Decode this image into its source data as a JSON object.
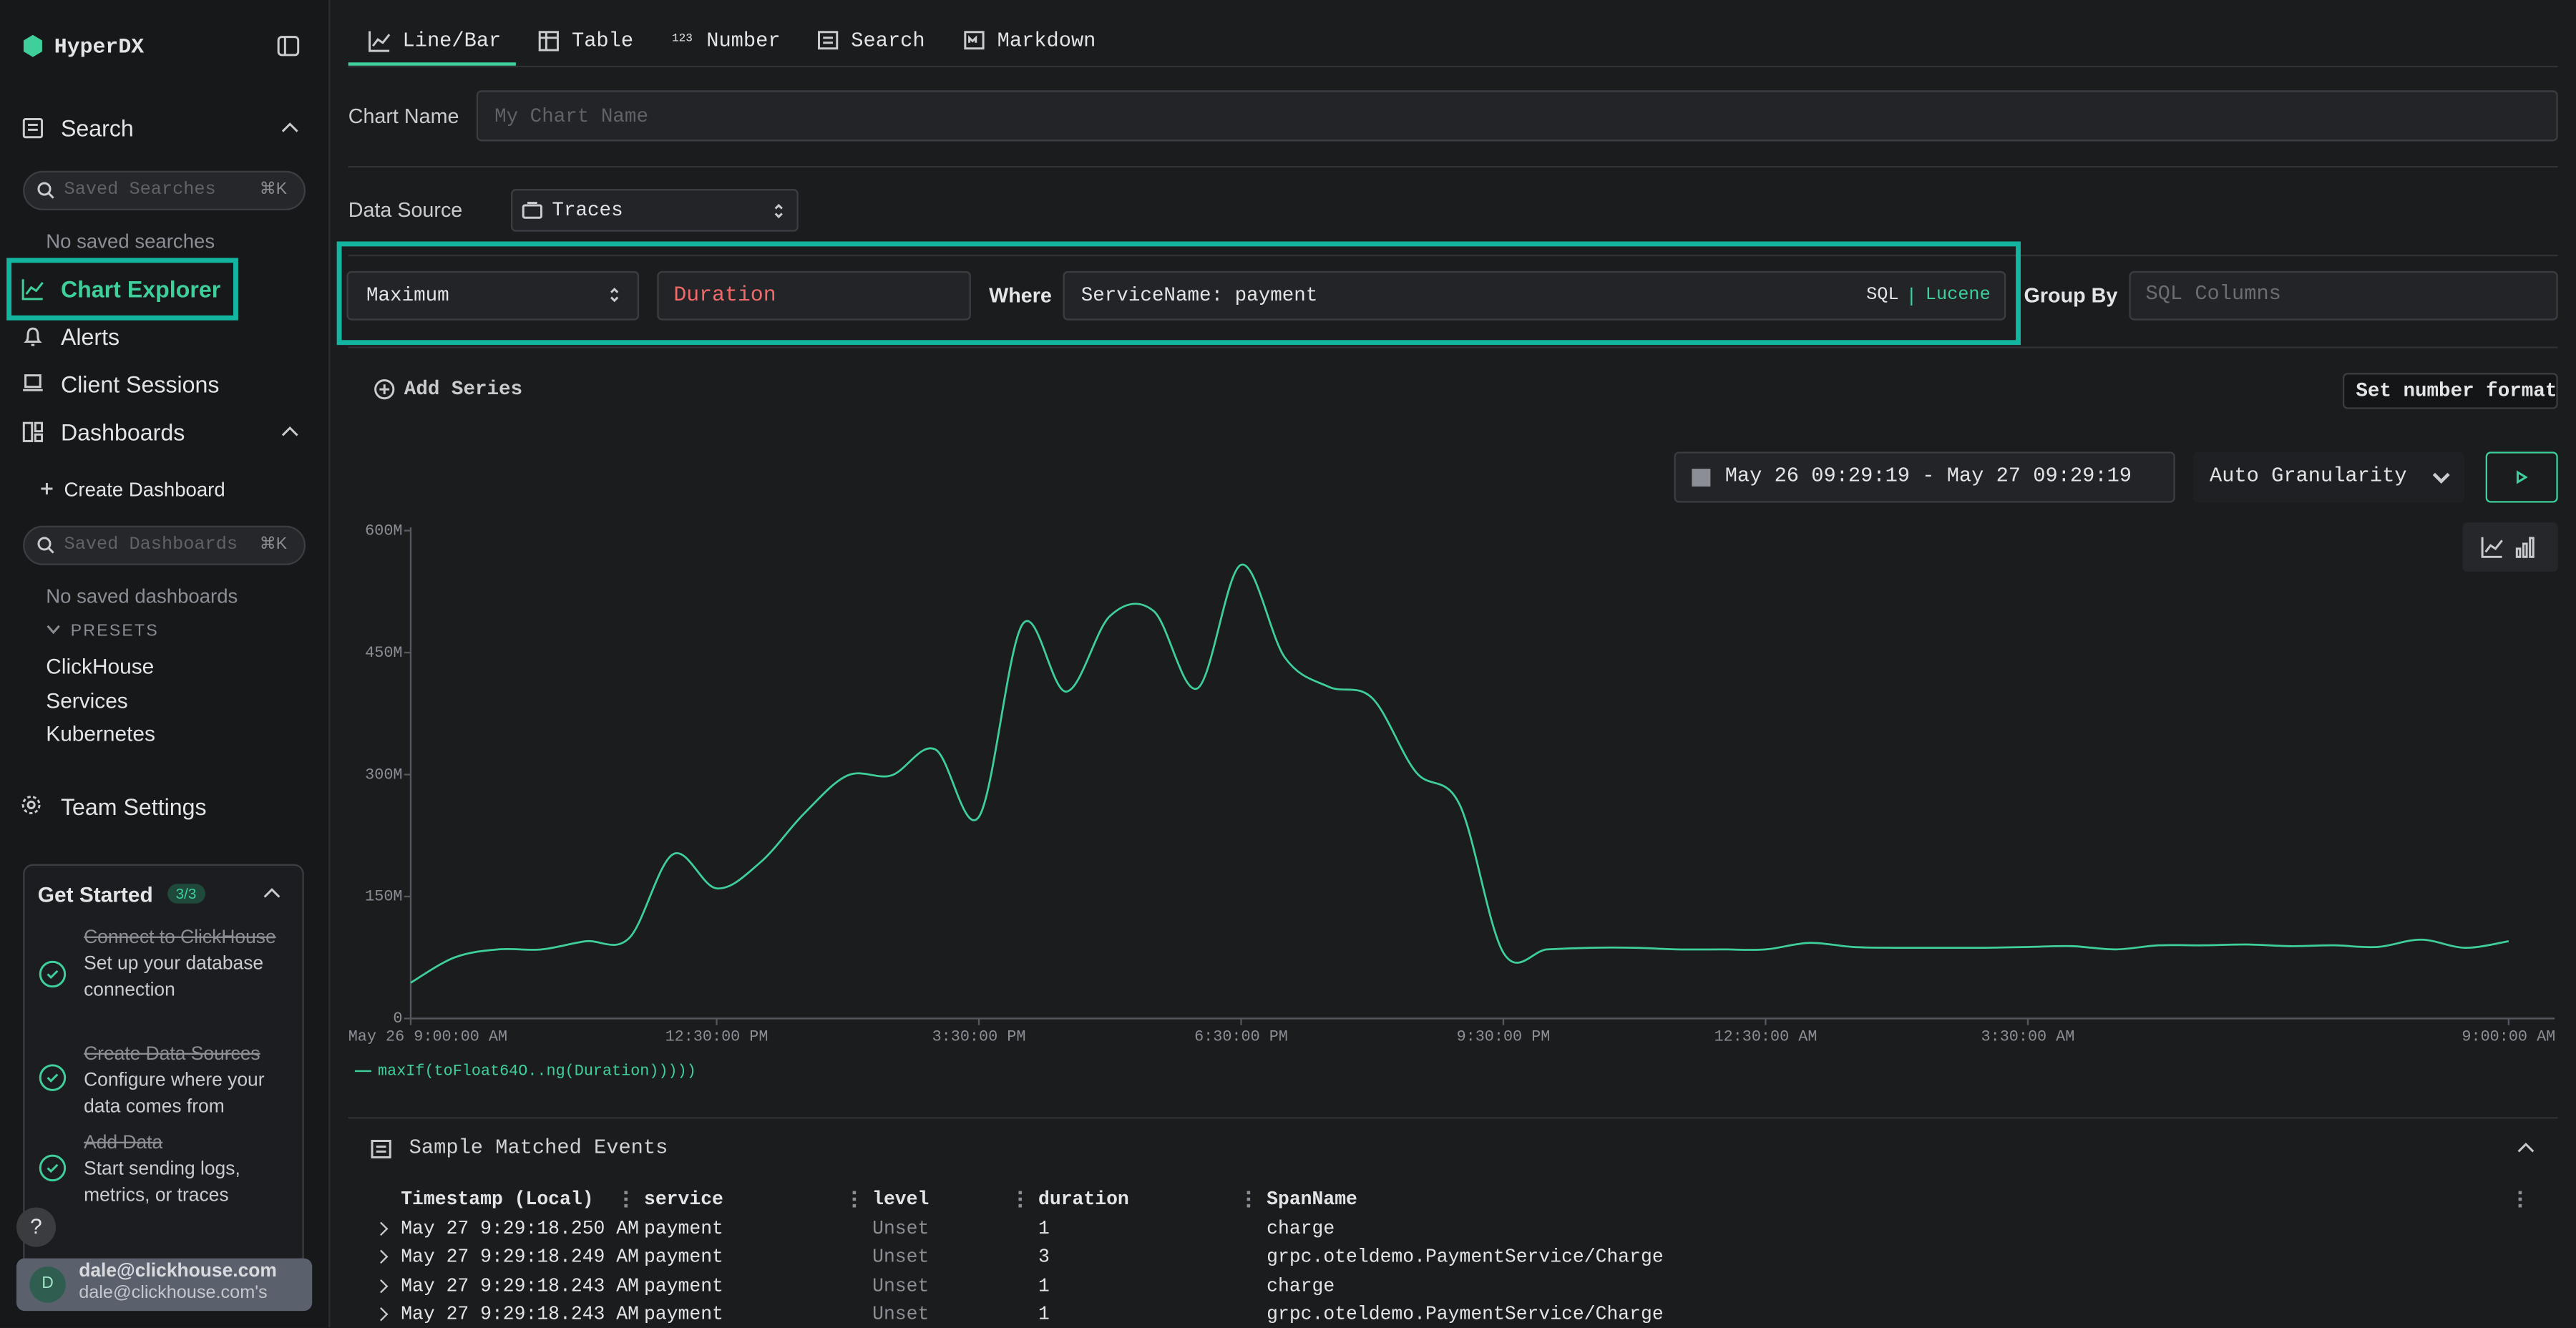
{
  "sidebar": {
    "brand": "HyperDX",
    "search": "Search",
    "saved_searches_placeholder": "Saved Searches",
    "shortcut": "⌘K",
    "no_saved_searches": "No saved searches",
    "nav": [
      "Chart Explorer",
      "Alerts",
      "Client Sessions",
      "Dashboards"
    ],
    "create_dashboard": "Create Dashboard",
    "saved_dashboards_placeholder": "Saved Dashboards",
    "no_saved_dashboards": "No saved dashboards",
    "presets_title": "PRESETS",
    "presets": [
      "ClickHouse",
      "Services",
      "Kubernetes"
    ],
    "team_settings": "Team Settings",
    "get_started": {
      "title": "Get Started",
      "progress": "3/3",
      "steps": [
        {
          "title": "Connect to ClickHouse",
          "desc": "Set up your database connection"
        },
        {
          "title": "Create Data Sources",
          "desc": "Configure where your data comes from"
        },
        {
          "title": "Add Data",
          "desc": "Start sending logs, metrics, or traces"
        }
      ]
    },
    "help": "?",
    "user": {
      "initial": "D",
      "name": "dale@clickhouse.com",
      "team": "dale@clickhouse.com's"
    }
  },
  "tabs": {
    "items": [
      "Line/Bar",
      "Table",
      "Number",
      "Search",
      "Markdown"
    ],
    "number_icon": "123"
  },
  "editor": {
    "chart_name_label": "Chart Name",
    "chart_name_placeholder": "My Chart Name",
    "data_source_label": "Data Source",
    "data_source": "Traces",
    "aggregation": "Maximum",
    "field": "Duration",
    "where_label": "Where",
    "where": "ServiceName: payment",
    "sql": "SQL",
    "lucene": "Lucene",
    "group_by_label": "Group By",
    "group_by_placeholder": "SQL Columns",
    "add_series": "Add Series",
    "number_format": "Set number format",
    "time_range": "May 26 09:29:19 - May 27 09:29:19",
    "granularity": "Auto Granularity"
  },
  "chart_data": {
    "type": "line",
    "x": [
      "May 26 09:00",
      "May 26 09:30",
      "May 26 10:00",
      "May 26 10:30",
      "May 26 11:00",
      "May 26 11:30",
      "May 26 12:00",
      "May 26 12:30",
      "May 26 13:00",
      "May 26 13:30",
      "May 26 14:00",
      "May 26 14:30",
      "May 26 15:00",
      "May 26 15:30",
      "May 26 16:00",
      "May 26 16:30",
      "May 26 17:00",
      "May 26 17:30",
      "May 26 18:00",
      "May 26 18:30",
      "May 26 19:00",
      "May 26 19:30",
      "May 26 20:00",
      "May 26 20:30",
      "May 26 21:00",
      "May 26 21:30",
      "May 26 22:00",
      "May 26 22:30",
      "May 26 23:00",
      "May 26 23:30",
      "May 27 00:00",
      "May 27 00:30",
      "May 27 01:00",
      "May 27 01:30",
      "May 27 02:00",
      "May 27 02:30",
      "May 27 03:00",
      "May 27 03:30",
      "May 27 04:00",
      "May 27 04:30",
      "May 27 05:00",
      "May 27 05:30",
      "May 27 06:00",
      "May 27 06:30",
      "May 27 07:00",
      "May 27 07:30",
      "May 27 08:00",
      "May 27 08:30",
      "May 27 09:00"
    ],
    "series": [
      {
        "name": "maxIf(toFloat64O..ng(Duration)))))",
        "color": "#3ecf9b",
        "values": [
          44000000,
          75000000,
          85000000,
          85000000,
          95000000,
          99000000,
          202000000,
          160000000,
          192000000,
          252000000,
          299000000,
          299000000,
          331000000,
          248000000,
          485000000,
          402000000,
          495000000,
          501000000,
          406000000,
          558000000,
          444000000,
          408000000,
          394000000,
          303000000,
          263000000,
          81000000,
          85000000,
          87000000,
          87000000,
          85000000,
          85000000,
          85000000,
          93000000,
          88000000,
          87000000,
          87000000,
          87000000,
          88000000,
          89000000,
          85000000,
          90000000,
          90000000,
          91000000,
          89000000,
          90000000,
          88000000,
          97000000,
          87000000,
          95000000
        ]
      }
    ],
    "xlim": [
      "May 26 09:00",
      "May 27 09:00"
    ],
    "xticks": [
      {
        "value": "May 26 09:00",
        "label": "May 26 9:00:00 AM"
      },
      {
        "value": "May 26 12:30",
        "label": "12:30:00 PM"
      },
      {
        "value": "May 26 15:30",
        "label": "3:30:00 PM"
      },
      {
        "value": "May 26 18:30",
        "label": "6:30:00 PM"
      },
      {
        "value": "May 26 21:30",
        "label": "9:30:00 PM"
      },
      {
        "value": "May 27 00:30",
        "label": "12:30:00 AM"
      },
      {
        "value": "May 27 03:30",
        "label": "3:30:00 AM"
      },
      {
        "value": "May 27 09:00",
        "label": "9:00:00 AM"
      }
    ],
    "ylim": [
      0,
      600000000
    ],
    "yticks": [
      0,
      {
        "value": 150000000,
        "label": "150M"
      },
      {
        "value": 300000000,
        "label": "300M"
      },
      {
        "value": 450000000,
        "label": "450M"
      },
      {
        "value": 600000000,
        "label": "600M"
      }
    ]
  },
  "events": {
    "title": "Sample Matched Events",
    "columns": [
      "Timestamp (Local)",
      "service",
      "level",
      "duration",
      "SpanName"
    ],
    "rows": [
      [
        "May 27 9:29:18.250 AM",
        "payment",
        "Unset",
        "1",
        "charge"
      ],
      [
        "May 27 9:29:18.249 AM",
        "payment",
        "Unset",
        "3",
        "grpc.oteldemo.PaymentService/Charge"
      ],
      [
        "May 27 9:29:18.243 AM",
        "payment",
        "Unset",
        "1",
        "charge"
      ],
      [
        "May 27 9:29:18.243 AM",
        "payment",
        "Unset",
        "1",
        "grpc.oteldemo.PaymentService/Charge"
      ]
    ]
  }
}
